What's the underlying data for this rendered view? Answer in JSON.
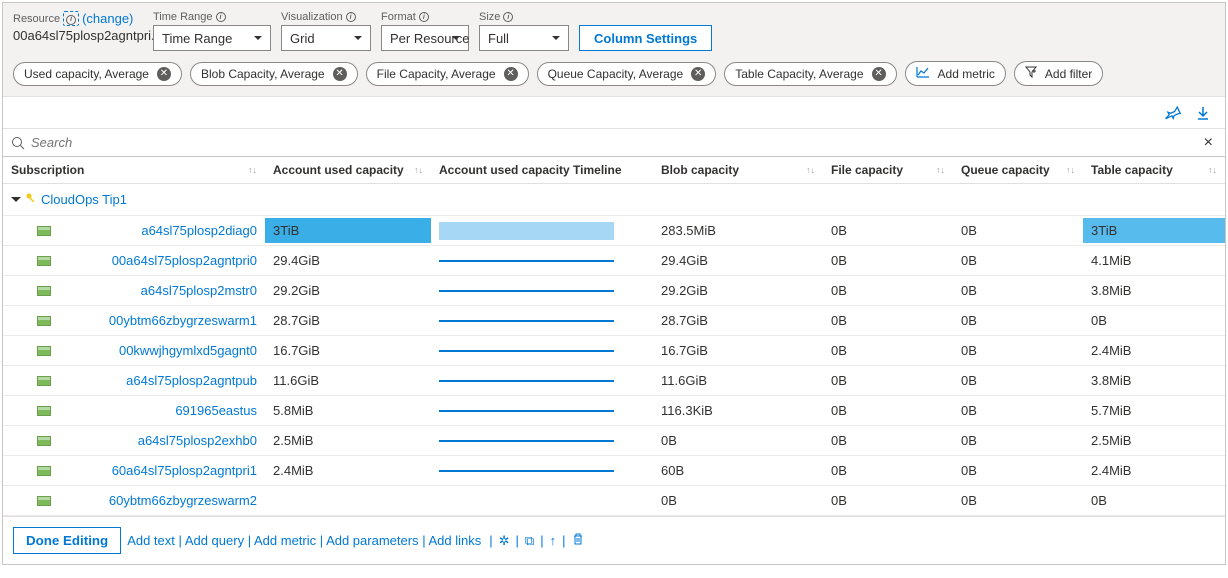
{
  "toolbar": {
    "resource_label": "Resource",
    "change_label": "(change)",
    "resource_value": "00a64sl75plosp2agntpri...",
    "time_range_label": "Time Range",
    "time_range_value": "Time Range",
    "visualization_label": "Visualization",
    "visualization_value": "Grid",
    "format_label": "Format",
    "format_value": "Per Resource",
    "size_label": "Size",
    "size_value": "Full",
    "column_settings": "Column Settings"
  },
  "metrics": [
    "Used capacity, Average",
    "Blob Capacity, Average",
    "File Capacity, Average",
    "Queue Capacity, Average",
    "Table Capacity, Average"
  ],
  "add_metric_label": "Add metric",
  "add_filter_label": "Add filter",
  "search_placeholder": "Search",
  "columns": {
    "subscription": "Subscription",
    "used": "Account used capacity",
    "timeline": "Account used capacity Timeline",
    "blob": "Blob capacity",
    "file": "File capacity",
    "queue": "Queue capacity",
    "table": "Table capacity"
  },
  "group_name": "CloudOps Tip1",
  "colors": {
    "bar_full": "#3aaee6",
    "bar_light": "#a6d8f5",
    "tl_dark": "#0078d4",
    "tl_light": "#a6d8f5",
    "table_hl": "#57bced"
  },
  "rows": [
    {
      "name": "a64sl75plosp2diag0",
      "used": "3TiB",
      "used_bar": 1.0,
      "used_bar_color": "bar_full",
      "tl_color": "tl_light",
      "tl_full": true,
      "blob": "283.5MiB",
      "file": "0B",
      "queue": "0B",
      "table": "3TiB",
      "table_hl": true
    },
    {
      "name": "00a64sl75plosp2agntpri0",
      "used": "29.4GiB",
      "used_bar": 0,
      "tl_color": "tl_dark",
      "blob": "29.4GiB",
      "file": "0B",
      "queue": "0B",
      "table": "4.1MiB"
    },
    {
      "name": "a64sl75plosp2mstr0",
      "used": "29.2GiB",
      "used_bar": 0,
      "tl_color": "tl_dark",
      "blob": "29.2GiB",
      "file": "0B",
      "queue": "0B",
      "table": "3.8MiB"
    },
    {
      "name": "00ybtm66zbygrzeswarm1",
      "used": "28.7GiB",
      "used_bar": 0,
      "tl_color": "tl_dark",
      "blob": "28.7GiB",
      "file": "0B",
      "queue": "0B",
      "table": "0B"
    },
    {
      "name": "00kwwjhgymlxd5gagnt0",
      "used": "16.7GiB",
      "used_bar": 0,
      "tl_color": "tl_dark",
      "blob": "16.7GiB",
      "file": "0B",
      "queue": "0B",
      "table": "2.4MiB"
    },
    {
      "name": "a64sl75plosp2agntpub",
      "used": "11.6GiB",
      "used_bar": 0,
      "tl_color": "tl_dark",
      "blob": "11.6GiB",
      "file": "0B",
      "queue": "0B",
      "table": "3.8MiB"
    },
    {
      "name": "691965eastus",
      "used": "5.8MiB",
      "used_bar": 0,
      "tl_color": "tl_dark",
      "blob": "116.3KiB",
      "file": "0B",
      "queue": "0B",
      "table": "5.7MiB"
    },
    {
      "name": "a64sl75plosp2exhb0",
      "used": "2.5MiB",
      "used_bar": 0,
      "tl_color": "tl_dark",
      "blob": "0B",
      "file": "0B",
      "queue": "0B",
      "table": "2.5MiB"
    },
    {
      "name": "60a64sl75plosp2agntpri1",
      "used": "2.4MiB",
      "used_bar": 0,
      "tl_color": "tl_dark",
      "blob": "60B",
      "file": "0B",
      "queue": "0B",
      "table": "2.4MiB"
    },
    {
      "name": "60ybtm66zbygrzeswarm2",
      "used": "",
      "used_bar": 0,
      "tl_color": "",
      "blob": "0B",
      "file": "0B",
      "queue": "0B",
      "table": "0B"
    }
  ],
  "footer": {
    "done": "Done Editing",
    "links": [
      "Add text",
      "Add query",
      "Add metric",
      "Add parameters",
      "Add links"
    ]
  }
}
